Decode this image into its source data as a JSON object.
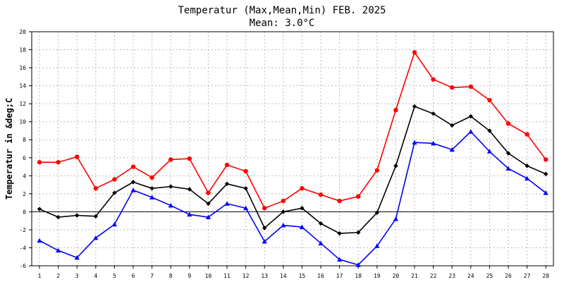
{
  "chart_data": {
    "type": "line",
    "title": "Temperatur (Max,Mean,Min) FEB. 2025",
    "subtitle": "Mean: 3.0°C",
    "xlabel": "",
    "ylabel": "Temperatur in &deg;C",
    "xlim": [
      1,
      28
    ],
    "ylim": [
      -6,
      20
    ],
    "y_ticks": [
      -6,
      -4,
      -2,
      0,
      2,
      4,
      6,
      8,
      10,
      12,
      14,
      16,
      18,
      20
    ],
    "grid": true,
    "legend": "none",
    "categories": [
      "1",
      "2",
      "3",
      "4",
      "5",
      "6",
      "7",
      "8",
      "9",
      "10",
      "11",
      "12",
      "13",
      "14",
      "15",
      "16",
      "17",
      "18",
      "19",
      "20",
      "21",
      "22",
      "23",
      "24",
      "25",
      "26",
      "27",
      "28"
    ],
    "series": [
      {
        "color": "#ff0000",
        "marker": "circle",
        "values": [
          5.5,
          5.5,
          6.1,
          2.6,
          3.6,
          5.0,
          3.8,
          5.8,
          5.9,
          2.1,
          5.2,
          4.5,
          0.4,
          1.2,
          2.6,
          1.9,
          1.2,
          1.7,
          4.6,
          11.3,
          17.7,
          14.7,
          13.8,
          13.9,
          12.4,
          9.8,
          8.6,
          5.8
        ]
      },
      {
        "color": "#000000",
        "marker": "diamond",
        "values": [
          0.3,
          -0.6,
          -0.4,
          -0.5,
          2.1,
          3.3,
          2.6,
          2.8,
          2.5,
          0.9,
          3.1,
          2.6,
          -1.8,
          0.0,
          0.4,
          -1.3,
          -2.4,
          -2.3,
          -0.1,
          5.1,
          11.7,
          10.9,
          9.6,
          10.6,
          9.0,
          6.5,
          5.1,
          4.2
        ]
      },
      {
        "color": "#0000ff",
        "marker": "triangle",
        "values": [
          -3.2,
          -4.3,
          -5.1,
          -2.9,
          -1.4,
          2.4,
          1.6,
          0.7,
          -0.3,
          -0.6,
          0.9,
          0.4,
          -3.3,
          -1.5,
          -1.7,
          -3.5,
          -5.3,
          -5.9,
          -3.8,
          -0.8,
          7.7,
          7.6,
          6.9,
          8.9,
          6.7,
          4.8,
          3.7,
          2.1
        ]
      }
    ]
  }
}
